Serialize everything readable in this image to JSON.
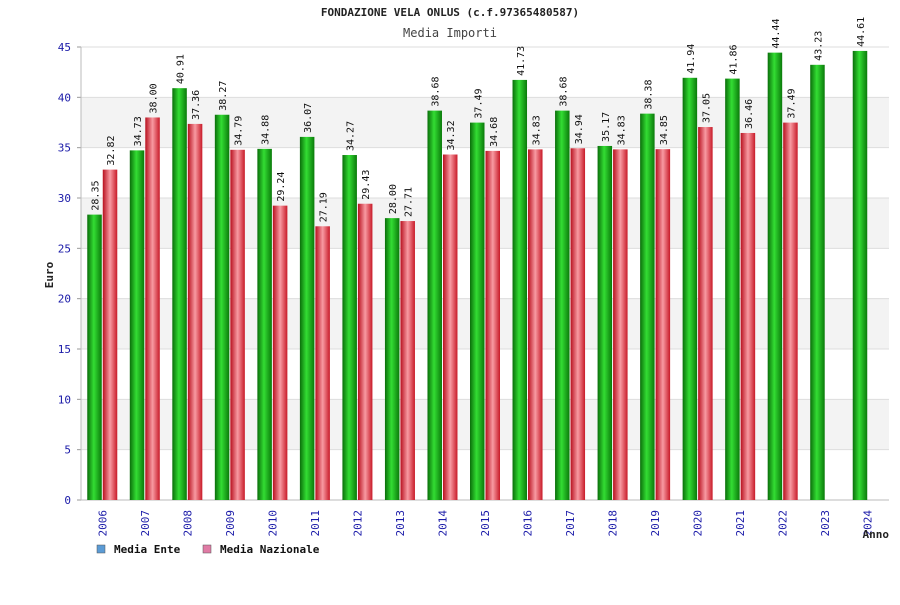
{
  "header": {
    "title": "FONDAZIONE VELA ONLUS (c.f.97365480587)",
    "subtitle": "Media Importi"
  },
  "chart_data": {
    "type": "bar",
    "title": "FONDAZIONE VELA ONLUS (c.f.97365480587)",
    "subtitle": "Media Importi",
    "xlabel": "Anno",
    "ylabel": "Euro",
    "ylim": [
      0,
      45
    ],
    "yticks": [
      0,
      5,
      10,
      15,
      20,
      25,
      30,
      35,
      40,
      45
    ],
    "grid": true,
    "legend_position": "bottom-left",
    "categories": [
      "2006",
      "2007",
      "2008",
      "2009",
      "2010",
      "2011",
      "2012",
      "2013",
      "2014",
      "2015",
      "2016",
      "2017",
      "2018",
      "2019",
      "2020",
      "2021",
      "2022",
      "2023",
      "2024"
    ],
    "series": [
      {
        "name": "Media Ente",
        "color": "#22b822",
        "legend_color": "#5b9bd5",
        "values": [
          28.35,
          34.73,
          40.91,
          38.27,
          34.88,
          36.07,
          34.27,
          28.0,
          38.68,
          37.49,
          41.73,
          38.68,
          35.17,
          38.38,
          41.94,
          41.86,
          44.44,
          43.23,
          44.61
        ],
        "labels": [
          "28.35",
          "34.73",
          "40.91",
          "38.27",
          "34.88",
          "36.07",
          "34.27",
          "28.00",
          "38.68",
          "37.49",
          "41.73",
          "38.68",
          "35.17",
          "38.38",
          "41.94",
          "41.86",
          "44.44",
          "43.23",
          "44.61"
        ]
      },
      {
        "name": "Media Nazionale",
        "color": "#e63e48",
        "legend_color": "#e07ba5",
        "values": [
          32.82,
          38.0,
          37.36,
          34.79,
          29.24,
          27.19,
          29.43,
          27.71,
          34.32,
          34.68,
          34.83,
          34.94,
          34.83,
          34.85,
          37.05,
          36.46,
          37.49,
          null,
          null
        ],
        "labels": [
          "32.82",
          "38.00",
          "37.36",
          "34.79",
          "29.24",
          "27.19",
          "29.43",
          "27.71",
          "34.32",
          "34.68",
          "34.83",
          "34.94",
          "34.83",
          "34.85",
          "37.05",
          "36.46",
          "37.49",
          "",
          ""
        ]
      }
    ]
  }
}
